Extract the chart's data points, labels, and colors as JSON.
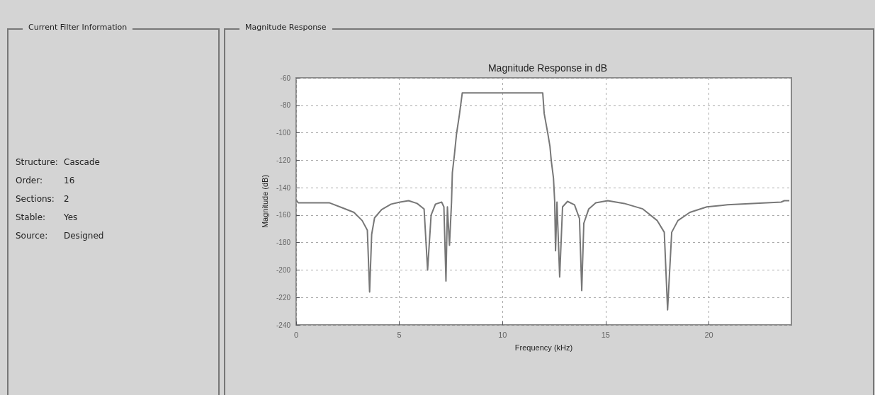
{
  "chart_data": [
    {
      "type": "other",
      "title": "Current Filter Information",
      "annotations": [
        "Structure:",
        "Cascade",
        "Order:",
        "16",
        "Sections:",
        "2",
        "Stable:",
        "Yes",
        "Source:",
        "Designed"
      ]
    },
    {
      "type": "line",
      "subtitle": "Magnitude Response",
      "title": "Magnitude Response in dB",
      "xlabel": "Frequency (kHz)",
      "ylabel": "Magnitude (dB)",
      "xlim": [
        0,
        24
      ],
      "xticks": [
        0,
        5,
        10,
        15,
        20
      ],
      "ylim": [
        -240,
        -60
      ],
      "yticks": [
        -240,
        -220,
        -200,
        -180,
        -160,
        -140,
        -120,
        -100,
        -80,
        -60
      ],
      "grid": true,
      "marker": "none",
      "line_style": "solid",
      "series": [
        {
          "color": "#777777",
          "x": [
            0,
            0.1,
            1.6,
            2.3,
            2.8,
            3.2,
            3.45,
            3.56,
            3.66,
            3.8,
            4.14,
            4.6,
            5.03,
            5.45,
            5.86,
            6.2,
            6.37,
            6.54,
            6.75,
            7.05,
            7.16,
            7.26,
            7.33,
            7.43,
            7.53,
            7.57,
            7.67,
            7.77,
            7.91,
            8.05,
            11.95,
            12.02,
            12.19,
            12.3,
            12.36,
            12.47,
            12.53,
            12.57,
            12.64,
            12.77,
            12.91,
            13.15,
            13.49,
            13.73,
            13.84,
            13.94,
            14.18,
            14.52,
            15.1,
            15.9,
            16.8,
            17.5,
            17.84,
            18.0,
            18.2,
            18.5,
            19.08,
            19.9,
            20.9,
            23.5,
            23.66,
            23.9
          ],
          "values": [
            -149,
            -151,
            -151,
            -155,
            -158,
            -164,
            -171,
            -216,
            -174,
            -162,
            -156,
            -152,
            -150.5,
            -149.5,
            -151.5,
            -155.5,
            -200,
            -160,
            -152,
            -150.5,
            -154,
            -208,
            -154,
            -182,
            -150.5,
            -129,
            -116,
            -101,
            -87,
            -71,
            -71,
            -86,
            -100,
            -110,
            -120,
            -133,
            -150.5,
            -186,
            -150.5,
            -205,
            -154,
            -150,
            -152.5,
            -162.5,
            -215,
            -166,
            -155.5,
            -151,
            -149.5,
            -151.5,
            -155.5,
            -164,
            -172.5,
            -229,
            -172.5,
            -164,
            -158,
            -154,
            -152.5,
            -150.5,
            -149.5,
            -149.5
          ]
        }
      ]
    }
  ]
}
